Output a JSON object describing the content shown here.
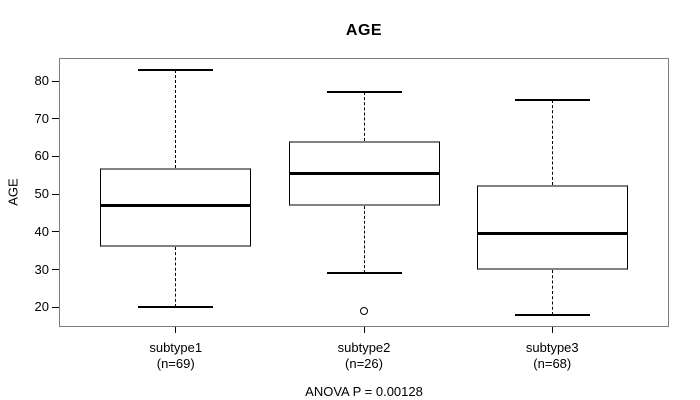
{
  "title": "AGE",
  "colors": {
    "line": "#000000",
    "frame": "#7d7d7d",
    "box_edge_horizontal": "#828282",
    "background": "#ffffff",
    "text": "#000000"
  },
  "chart_data": {
    "type": "boxplot",
    "title": "AGE",
    "ylabel": "AGE",
    "xlabel": "",
    "ylim": [
      14.8,
      86.1
    ],
    "yticks": [
      20,
      30,
      40,
      50,
      60,
      70,
      80
    ],
    "grid": false,
    "legend": false,
    "annotation": "ANOVA P = 0.00128",
    "categories": [
      "subtype1",
      "subtype2",
      "subtype3"
    ],
    "groups": [
      {
        "label": "subtype1",
        "n": 69,
        "n_label": "(n=69)",
        "whisker_low": 20,
        "q1": 36,
        "median": 47,
        "q3": 57,
        "whisker_high": 83,
        "outliers": []
      },
      {
        "label": "subtype2",
        "n": 26,
        "n_label": "(n=26)",
        "whisker_low": 29,
        "q1": 47,
        "median": 55.5,
        "q3": 64,
        "whisker_high": 77,
        "outliers": [
          19
        ]
      },
      {
        "label": "subtype3",
        "n": 68,
        "n_label": "(n=68)",
        "whisker_low": 18,
        "q1": 30,
        "median": 39.5,
        "q3": 52.5,
        "whisker_high": 75,
        "outliers": []
      }
    ]
  }
}
